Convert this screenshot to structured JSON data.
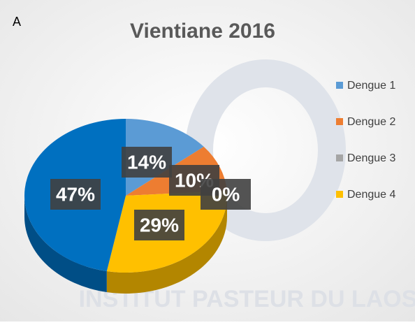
{
  "panel_label": "A",
  "watermark": "INSTITUT PASTEUR DU LAOS",
  "chart_data": {
    "type": "pie",
    "title": "Vientiane 2016",
    "categories": [
      "Dengue 1",
      "Dengue 2",
      "Dengue 3",
      "Dengue 4",
      null
    ],
    "values": [
      14,
      10,
      0,
      29,
      47
    ],
    "value_labels": [
      "14%",
      "10%",
      "0%",
      "29%",
      "47%"
    ],
    "colors": [
      "#5b9bd5",
      "#ed7d31",
      "#a5a5a5",
      "#ffc000",
      "#0070c0"
    ],
    "legend": "right"
  }
}
